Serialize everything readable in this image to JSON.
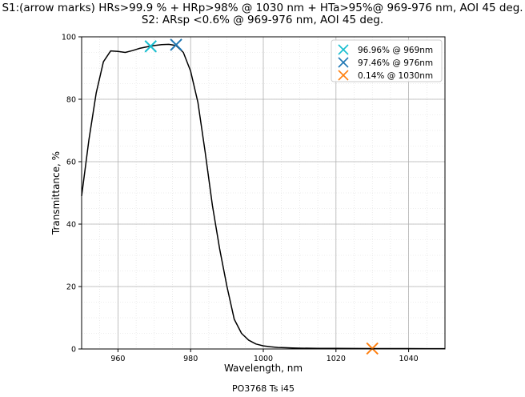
{
  "chart_data": {
    "type": "line",
    "title_lines": [
      "S1:(arrow marks) HRs>99.9 % + HRp>98% @ 1030 nm + HTa>95%@ 969-976 nm, AOI 45 deg.",
      "S2: ARsp <0.6% @ 969-976 nm, AOI 45 deg."
    ],
    "xlabel": "Wavelength, nm",
    "ylabel": "Transmittance, %",
    "caption": "PO3768 Ts i45",
    "xlim": [
      950,
      1050
    ],
    "ylim": [
      0,
      100
    ],
    "xticks": [
      960,
      980,
      1000,
      1020,
      1040
    ],
    "yticks": [
      0,
      20,
      40,
      60,
      80,
      100
    ],
    "grid": true,
    "legend_position": "top-right",
    "line_color": "#000000",
    "series": [
      {
        "x": [
          950,
          952,
          954,
          956,
          958,
          960,
          962,
          964,
          966,
          968,
          970,
          972,
          974,
          976,
          978,
          980,
          982,
          984,
          986,
          988,
          990,
          992,
          994,
          996,
          998,
          1000,
          1002,
          1004,
          1006,
          1008,
          1010,
          1015,
          1020,
          1025,
          1030,
          1035,
          1040,
          1045,
          1050
        ],
        "y": [
          49,
          67,
          82,
          92,
          95.5,
          95.3,
          95,
          95.6,
          96.3,
          96.8,
          97.2,
          97.5,
          97.6,
          97.2,
          95,
          89,
          79,
          63,
          46,
          32,
          20,
          9.5,
          5,
          2.8,
          1.6,
          1.0,
          0.7,
          0.5,
          0.4,
          0.3,
          0.25,
          0.2,
          0.18,
          0.15,
          0.14,
          0.13,
          0.12,
          0.11,
          0.1
        ]
      }
    ],
    "markers": [
      {
        "x": 969,
        "y": 96.96,
        "label": "96.96% @ 969nm",
        "color": "#17becf"
      },
      {
        "x": 976,
        "y": 97.46,
        "label": "97.46% @ 976nm",
        "color": "#1f77b4"
      },
      {
        "x": 1030,
        "y": 0.14,
        "label": "0.14% @ 1030nm",
        "color": "#ff7f0e"
      }
    ]
  }
}
